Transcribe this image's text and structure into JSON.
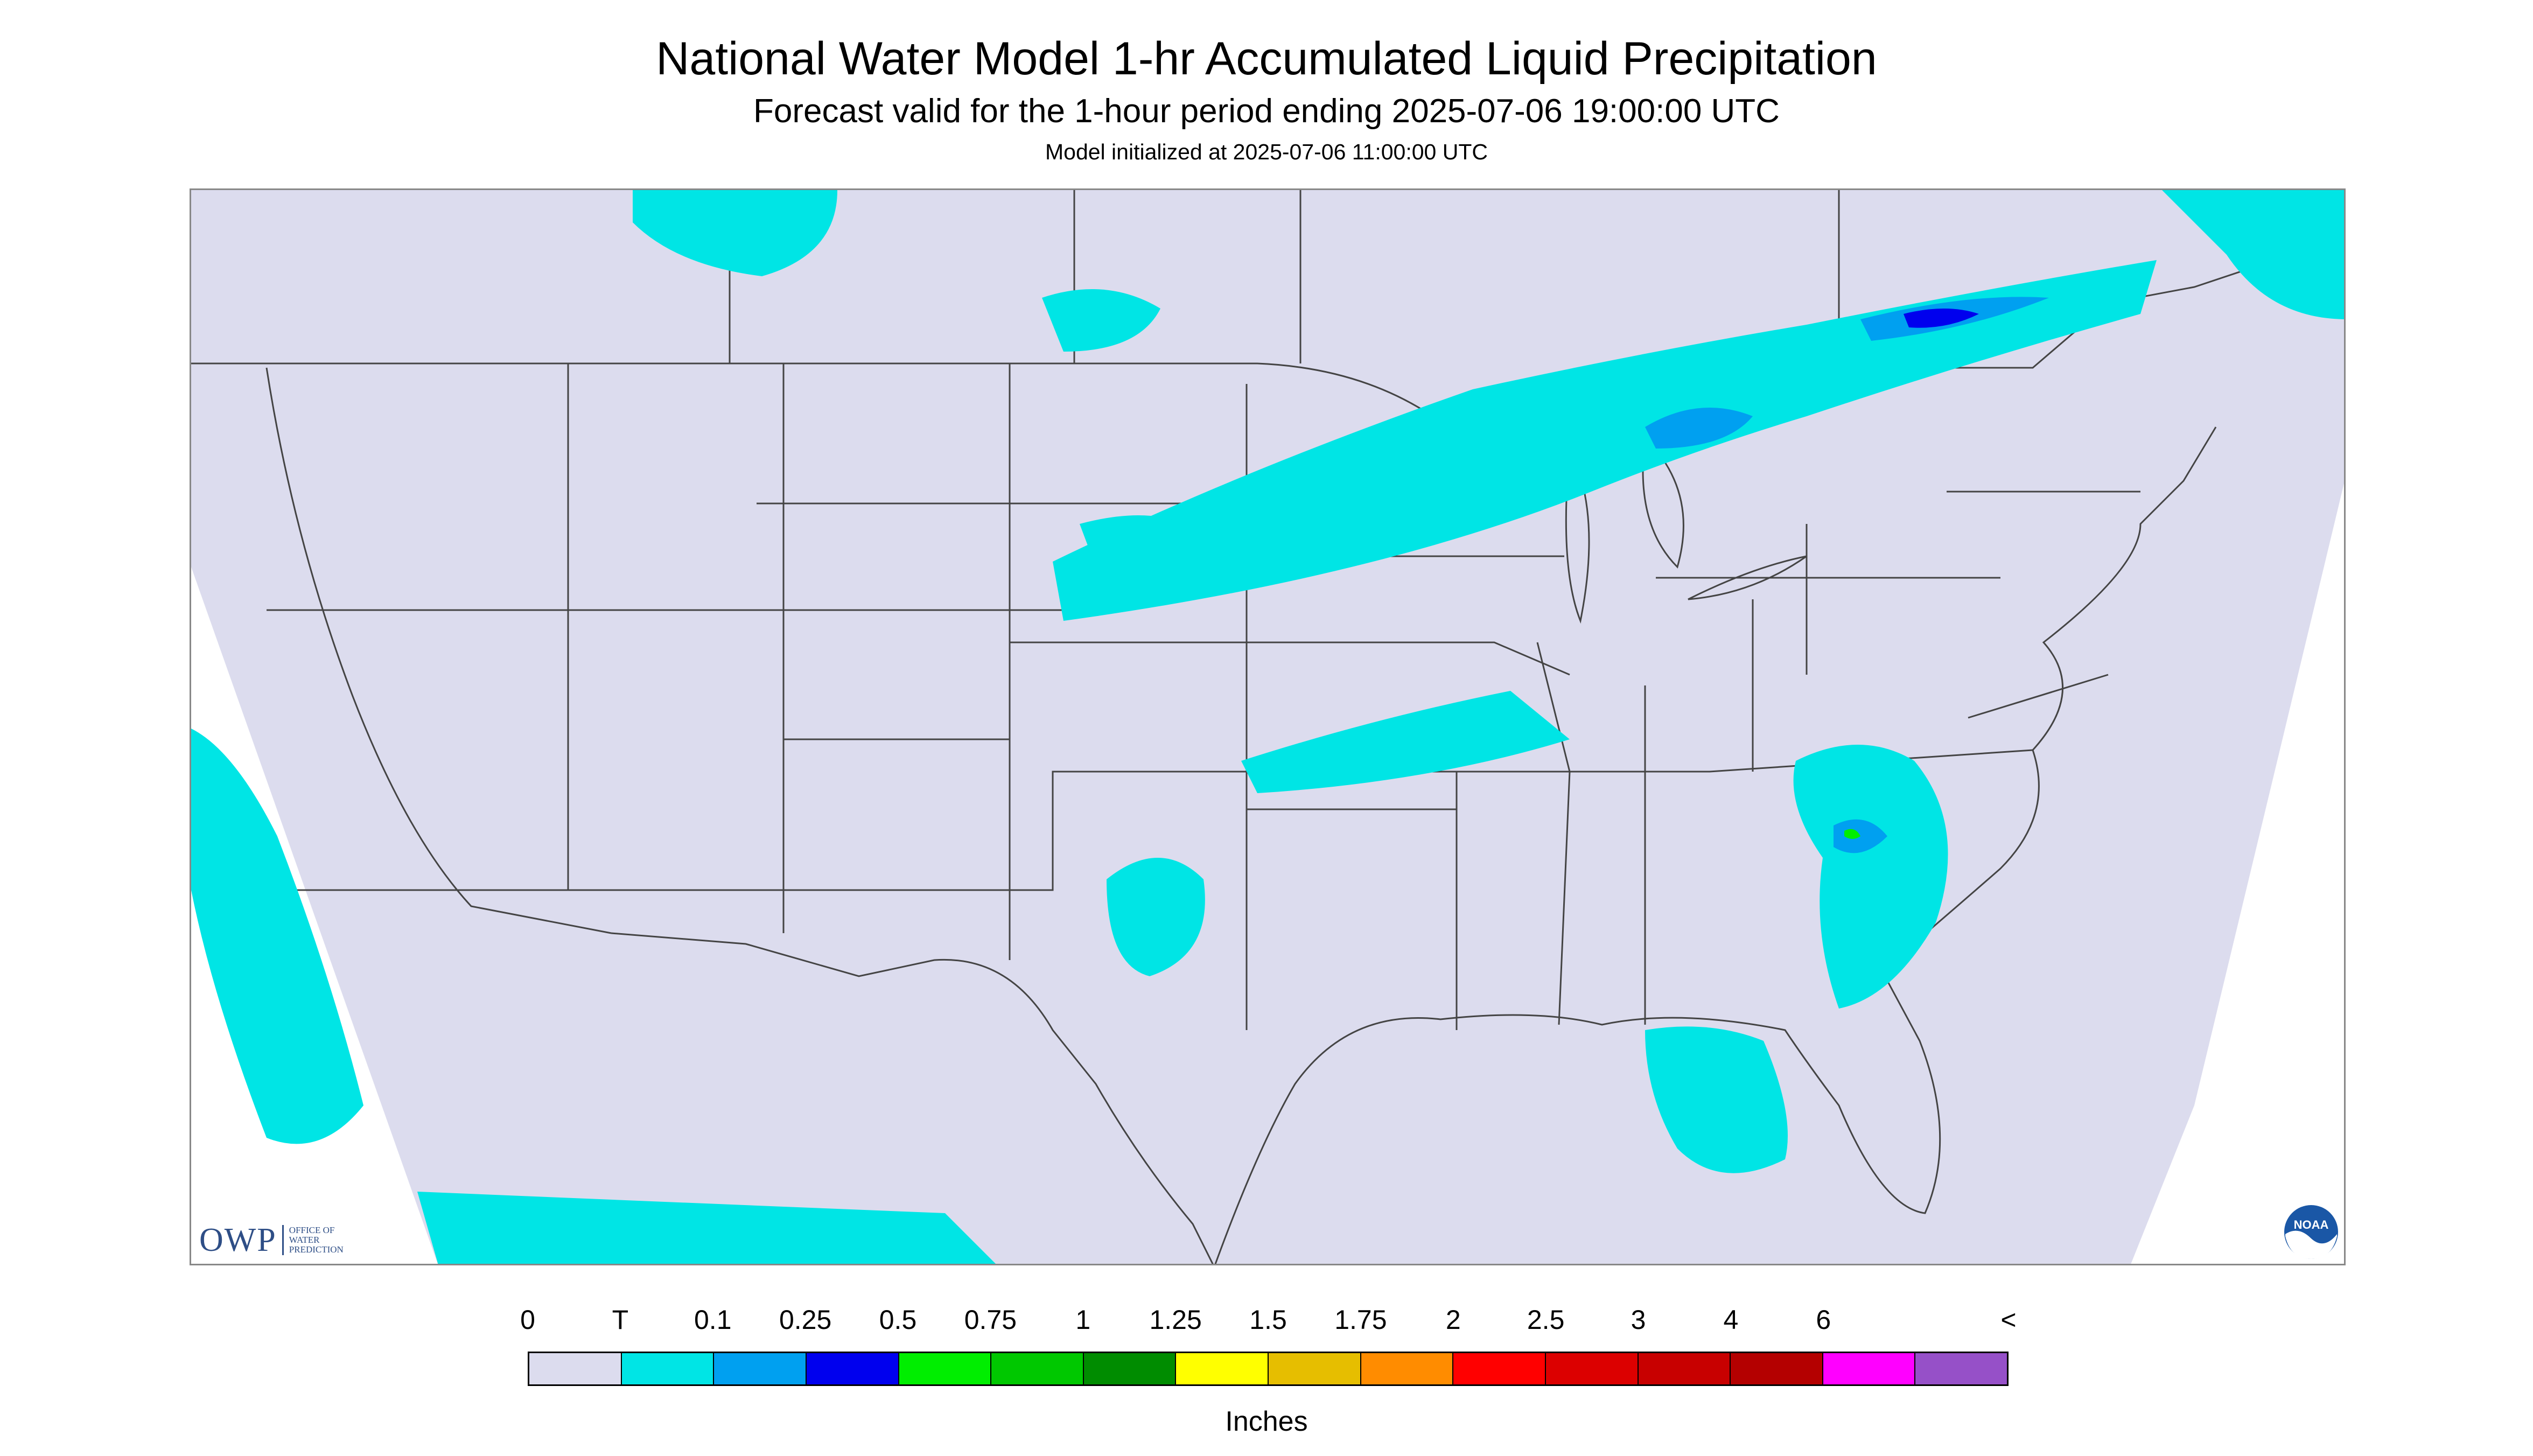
{
  "title": "National Water Model 1-hr Accumulated Liquid Precipitation",
  "subtitle": "Forecast valid for the 1-hour period ending 2025-07-06 19:00:00 UTC",
  "init": "Model initialized at 2025-07-06 11:00:00 UTC",
  "map": {
    "background_color": "#dcdcee",
    "outside_color": "#ffffff",
    "boundary_color": "#444444",
    "precip_trace_color": "#00e5e5",
    "precip_light_color": "#00a0f0",
    "precip_moderate_color": "#0000ee",
    "precip_heavy_color": "#00ee00",
    "precip_extreme_color": "#f0f000"
  },
  "owp_logo": {
    "abbr": "OWP",
    "lines": [
      "OFFICE OF",
      "WATER",
      "PREDICTION"
    ],
    "color": "#2e4e86"
  },
  "noaa_logo": {
    "text": "NOAA",
    "icon": "noaa-logo-icon"
  },
  "legend": {
    "ticks": [
      "0",
      "T",
      "0.1",
      "0.25",
      "0.5",
      "0.75",
      "1",
      "1.25",
      "1.5",
      "1.75",
      "2",
      "2.5",
      "3",
      "4",
      "6",
      "<"
    ],
    "colors": [
      "#dcdcee",
      "#00e5e5",
      "#00a0f0",
      "#0000ee",
      "#00ee00",
      "#00c800",
      "#008c00",
      "#ffff00",
      "#e6be00",
      "#ff8c00",
      "#ff0000",
      "#dc0000",
      "#c80000",
      "#b40000",
      "#ff00ff",
      "#9650c8"
    ],
    "units": "Inches"
  }
}
